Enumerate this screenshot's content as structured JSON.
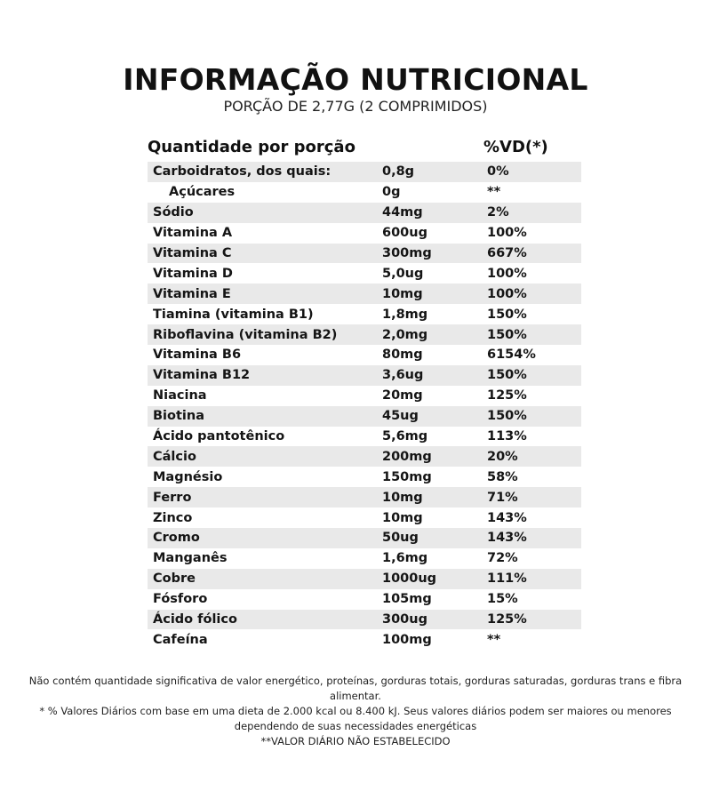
{
  "title": "INFORMAÇÃO NUTRICIONAL",
  "subtitle": "PORÇÃO DE 2,77G (2 COMPRIMIDOS)",
  "table": {
    "headers": {
      "nutrient": "Quantidade por porção",
      "amount": "",
      "vd": "%VD(*)"
    },
    "rows": [
      {
        "name": "Carboidratos, dos quais:",
        "amount": "0,8g",
        "vd": "0%"
      },
      {
        "name": "Açúcares",
        "amount": "0g",
        "vd": "**"
      },
      {
        "name": "Sódio",
        "amount": "44mg",
        "vd": "2%"
      },
      {
        "name": "Vitamina A",
        "amount": "600ug",
        "vd": "100%"
      },
      {
        "name": "Vitamina C",
        "amount": "300mg",
        "vd": "667%"
      },
      {
        "name": "Vitamina D",
        "amount": "5,0ug",
        "vd": "100%"
      },
      {
        "name": "Vitamina E",
        "amount": "10mg",
        "vd": "100%"
      },
      {
        "name": "Tiamina (vitamina B1)",
        "amount": "1,8mg",
        "vd": "150%"
      },
      {
        "name": "Riboflavina (vitamina B2)",
        "amount": "2,0mg",
        "vd": "150%"
      },
      {
        "name": "Vitamina B6",
        "amount": "80mg",
        "vd": "6154%"
      },
      {
        "name": "Vitamina B12",
        "amount": "3,6ug",
        "vd": "150%"
      },
      {
        "name": "Niacina",
        "amount": "20mg",
        "vd": "125%"
      },
      {
        "name": "Biotina",
        "amount": "45ug",
        "vd": "150%"
      },
      {
        "name": "Ácido pantotênico",
        "amount": "5,6mg",
        "vd": "113%"
      },
      {
        "name": "Cálcio",
        "amount": "200mg",
        "vd": "20%"
      },
      {
        "name": "Magnésio",
        "amount": "150mg",
        "vd": "58%"
      },
      {
        "name": "Ferro",
        "amount": "10mg",
        "vd": "71%"
      },
      {
        "name": "Zinco",
        "amount": "10mg",
        "vd": "143%"
      },
      {
        "name": "Cromo",
        "amount": "50ug",
        "vd": "143%"
      },
      {
        "name": "Manganês",
        "amount": "1,6mg",
        "vd": "72%"
      },
      {
        "name": "Cobre",
        "amount": "1000ug",
        "vd": "111%"
      },
      {
        "name": "Fósforo",
        "amount": "105mg",
        "vd": "15%"
      },
      {
        "name": "Ácido fólico",
        "amount": "300ug",
        "vd": "125%"
      },
      {
        "name": "Cafeína",
        "amount": "100mg",
        "vd": "**"
      }
    ]
  },
  "footer": {
    "line1": "Não contém quantidade significativa de valor energético, proteínas, gorduras totais, gorduras saturadas, gorduras trans e fibra alimentar.",
    "line2": "* % Valores Diários com base em uma dieta de 2.000 kcal ou 8.400 kJ. Seus valores diários podem ser maiores ou menores dependendo de suas necessidades energéticas",
    "line3": "**VALOR DIÁRIO NÃO ESTABELECIDO"
  },
  "colors": {
    "row_stripe": "#e9e9e9",
    "text": "#111111",
    "background": "#ffffff"
  }
}
